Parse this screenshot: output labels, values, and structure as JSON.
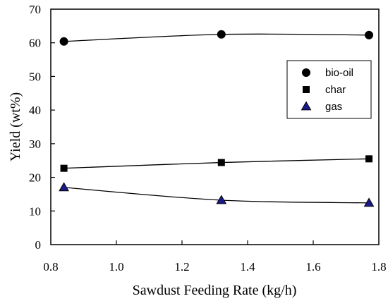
{
  "chart_data": {
    "type": "line",
    "title": "",
    "xlabel": "Sawdust Feeding Rate (kg/h)",
    "ylabel": "Yield (wt%)",
    "xlim": [
      0.8,
      1.8
    ],
    "ylim": [
      0,
      70
    ],
    "x_ticks": [
      "0.8",
      "1.0",
      "1.2",
      "1.4",
      "1.6",
      "1.8"
    ],
    "y_ticks": [
      "0",
      "10",
      "20",
      "30",
      "40",
      "50",
      "60",
      "70"
    ],
    "x": [
      0.84,
      1.32,
      1.77
    ],
    "series": [
      {
        "name": "bio-oil",
        "values": [
          60.4,
          62.5,
          62.3
        ],
        "marker": "circle",
        "color": "#000000"
      },
      {
        "name": "char",
        "values": [
          22.7,
          24.4,
          25.5
        ],
        "marker": "square",
        "color": "#000000"
      },
      {
        "name": "gas",
        "values": [
          17.0,
          13.2,
          12.4
        ],
        "marker": "triangle",
        "color": "#1a1a8c"
      }
    ],
    "legend_position": "right",
    "grid": false
  }
}
